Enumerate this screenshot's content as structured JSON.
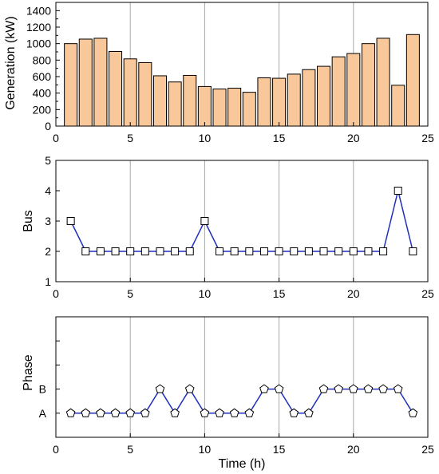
{
  "chart_data": [
    {
      "type": "bar",
      "ylabel": "Generation (kW)",
      "xlim": [
        0,
        25
      ],
      "ylim": [
        0,
        1500
      ],
      "xticks": [
        "0",
        "5",
        "10",
        "15",
        "20",
        "25"
      ],
      "yticks": [
        "0",
        "200",
        "400",
        "600",
        "800",
        "1000",
        "1200",
        "1400"
      ],
      "x": [
        1,
        2,
        3,
        4,
        5,
        6,
        7,
        8,
        9,
        10,
        11,
        12,
        13,
        14,
        15,
        16,
        17,
        18,
        19,
        20,
        21,
        22,
        23,
        24
      ],
      "values": [
        1000,
        1055,
        1065,
        905,
        815,
        770,
        610,
        535,
        615,
        480,
        450,
        460,
        410,
        585,
        580,
        630,
        685,
        725,
        840,
        880,
        1000,
        1065,
        495,
        1110
      ],
      "bar_color": "#f9c89a",
      "grid": "vertical at x=5,10,15,20"
    },
    {
      "type": "line",
      "ylabel": "Bus",
      "xlim": [
        0,
        25
      ],
      "ylim": [
        1,
        5
      ],
      "xticks": [
        "0",
        "5",
        "10",
        "15",
        "20",
        "25"
      ],
      "yticks": [
        "1",
        "2",
        "3",
        "4",
        "5"
      ],
      "x": [
        1,
        2,
        3,
        4,
        5,
        6,
        7,
        8,
        9,
        10,
        11,
        12,
        13,
        14,
        15,
        16,
        17,
        18,
        19,
        20,
        21,
        22,
        23,
        24
      ],
      "values": [
        3,
        2,
        2,
        2,
        2,
        2,
        2,
        2,
        2,
        3,
        2,
        2,
        2,
        2,
        2,
        2,
        2,
        2,
        2,
        2,
        2,
        2,
        4,
        2
      ],
      "marker": "square",
      "line_color": "#1f2fbf",
      "grid": "vertical at x=5,10,15,20"
    },
    {
      "type": "line",
      "ylabel": "Phase",
      "xlabel": "Time (h)",
      "xlim": [
        0,
        25
      ],
      "ylim": [
        0,
        5
      ],
      "xticks": [
        "0",
        "5",
        "10",
        "15",
        "20",
        "25"
      ],
      "ytick_labels": {
        "1": "A",
        "2": "B"
      },
      "x": [
        1,
        2,
        3,
        4,
        5,
        6,
        7,
        8,
        9,
        10,
        11,
        12,
        13,
        14,
        15,
        16,
        17,
        18,
        19,
        20,
        21,
        22,
        23,
        24
      ],
      "values": [
        "A",
        "A",
        "A",
        "A",
        "A",
        "A",
        "B",
        "A",
        "B",
        "A",
        "A",
        "A",
        "A",
        "B",
        "B",
        "A",
        "A",
        "B",
        "B",
        "B",
        "B",
        "B",
        "B",
        "A"
      ],
      "marker": "pentagon",
      "line_color": "#1f2fbf",
      "grid": "vertical at x=5,10,15,20"
    }
  ]
}
